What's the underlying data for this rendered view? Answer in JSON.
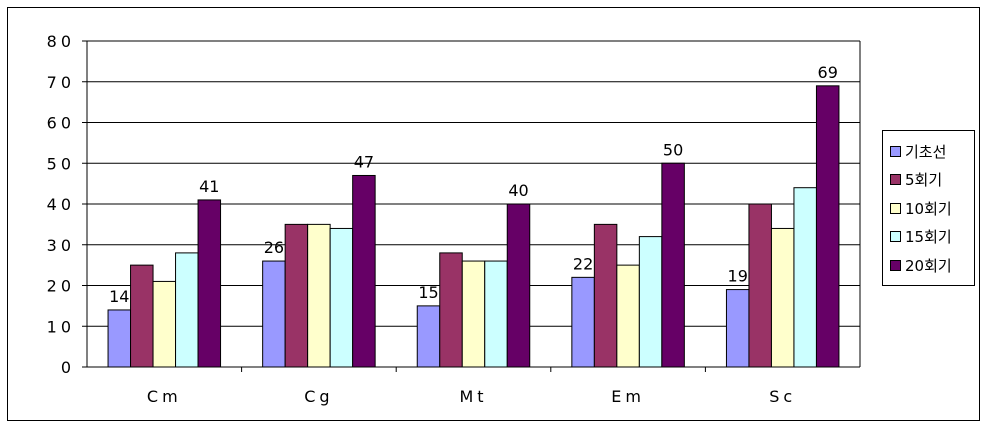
{
  "chart_data": {
    "type": "bar",
    "title": "",
    "xlabel": "",
    "ylabel": "",
    "categories": [
      "Cm",
      "Cg",
      "Mt",
      "Em",
      "Sc"
    ],
    "ylim": [
      0,
      80
    ],
    "yticks": [
      "0",
      "10",
      "20",
      "30",
      "40",
      "50",
      "60",
      "70",
      "80"
    ],
    "grid": true,
    "legend_position": "right",
    "series": [
      {
        "name": "기초선",
        "values": [
          14,
          26,
          15,
          22,
          19
        ],
        "color": "#9999FF"
      },
      {
        "name": "5회기",
        "values": [
          25,
          35,
          28,
          35,
          40
        ],
        "color": "#993366"
      },
      {
        "name": "10회기",
        "values": [
          21,
          35,
          26,
          25,
          34
        ],
        "color": "#FFFFCC"
      },
      {
        "name": "15회기",
        "values": [
          28,
          34,
          26,
          32,
          44
        ],
        "color": "#CCFFFF"
      },
      {
        "name": "20회기",
        "values": [
          41,
          47,
          40,
          50,
          69
        ],
        "color": "#660066"
      }
    ],
    "data_labels": [
      {
        "series": 0,
        "category": 0,
        "text": "14"
      },
      {
        "series": 0,
        "category": 1,
        "text": "26"
      },
      {
        "series": 0,
        "category": 2,
        "text": "15"
      },
      {
        "series": 0,
        "category": 3,
        "text": "22"
      },
      {
        "series": 0,
        "category": 4,
        "text": "19"
      },
      {
        "series": 4,
        "category": 0,
        "text": "41"
      },
      {
        "series": 4,
        "category": 1,
        "text": "47"
      },
      {
        "series": 4,
        "category": 2,
        "text": "40"
      },
      {
        "series": 4,
        "category": 3,
        "text": "50"
      },
      {
        "series": 4,
        "category": 4,
        "text": "69"
      }
    ]
  }
}
